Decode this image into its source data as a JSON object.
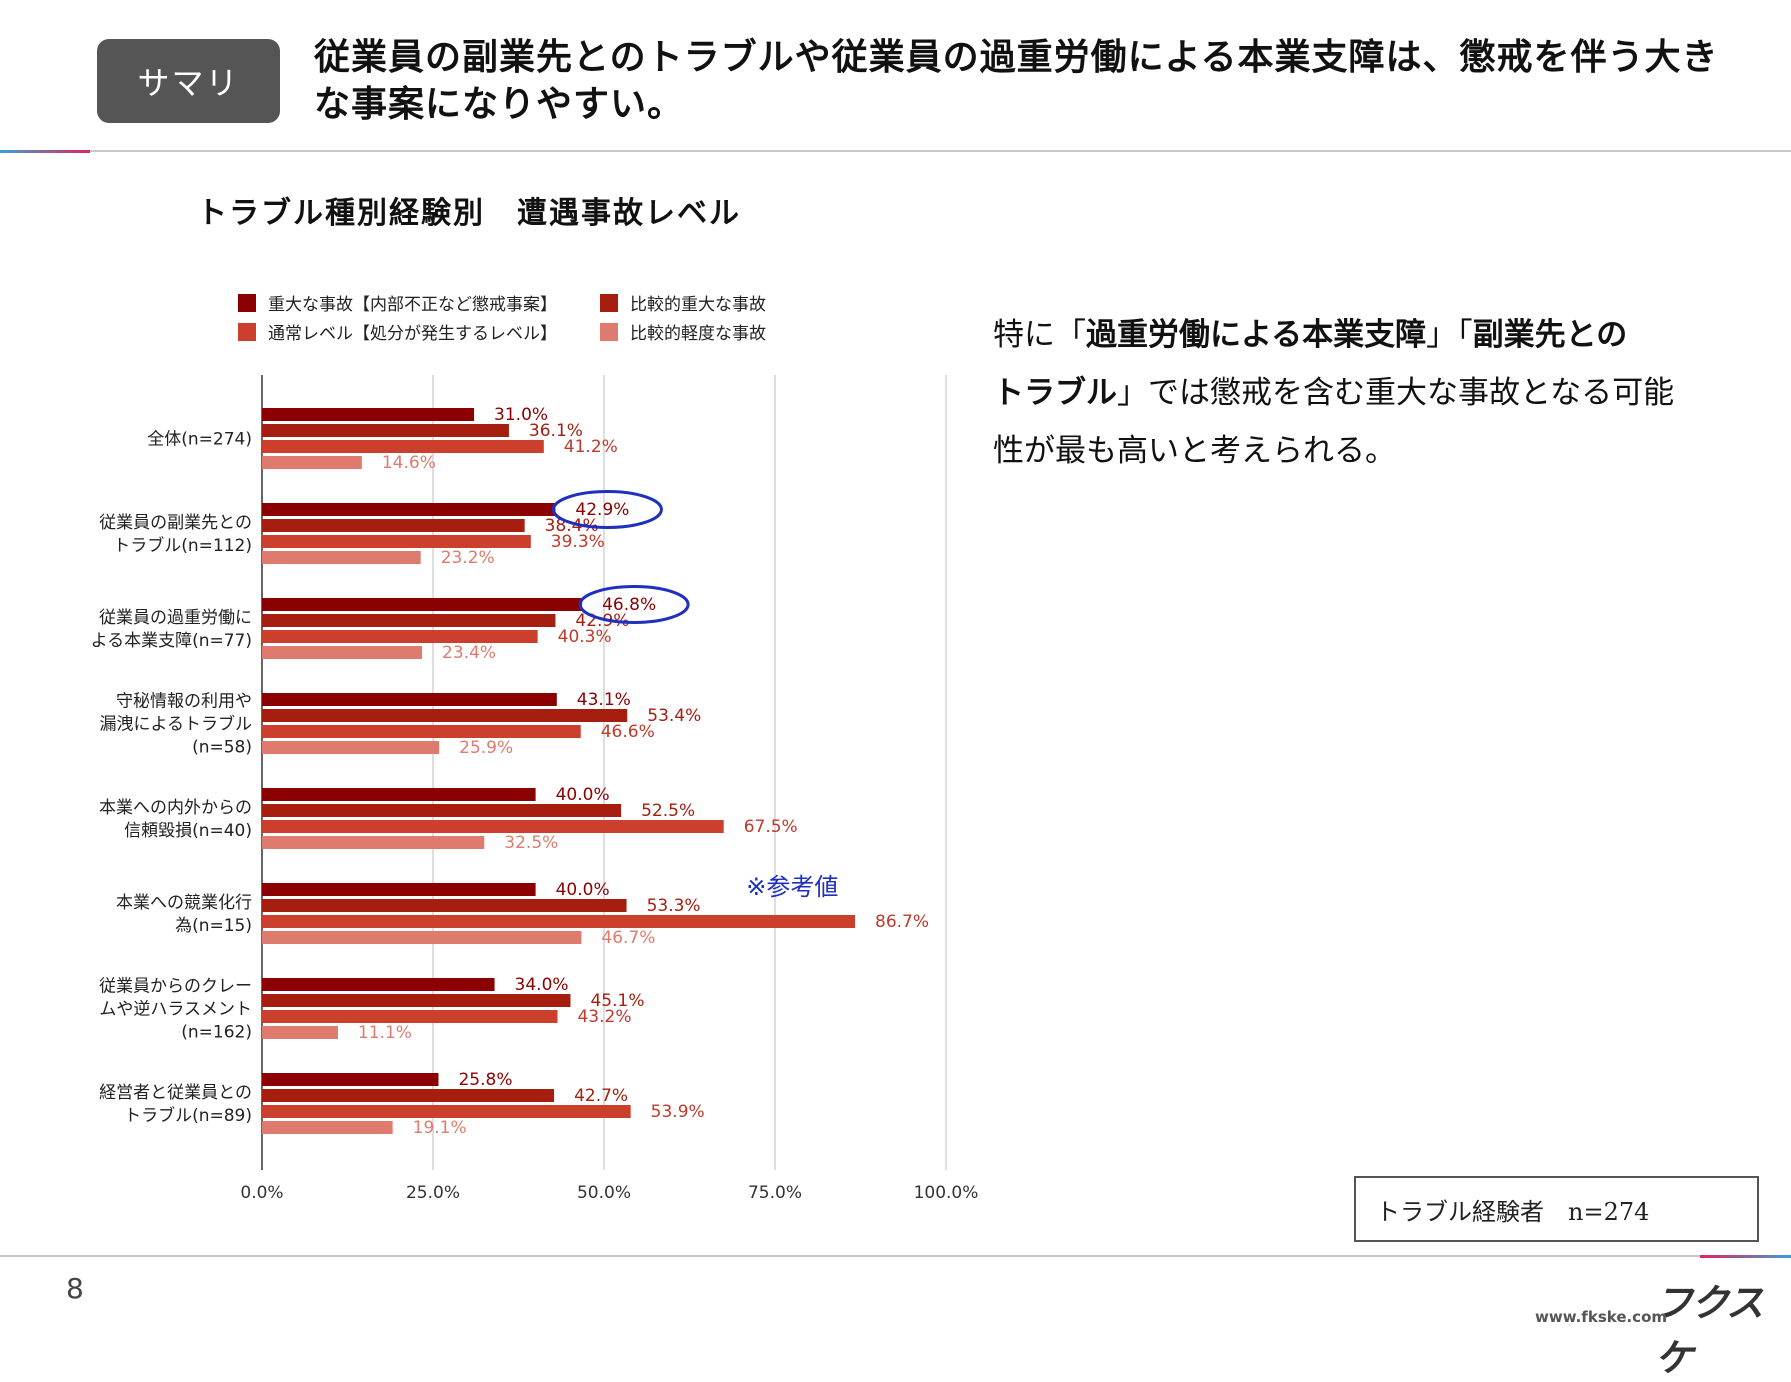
{
  "header": {
    "badge": "サマリ",
    "headline": "従業員の副業先とのトラブルや従業員の過重労働による本業支障は、懲戒を伴う大きな事案になりやすい。"
  },
  "chart_title": "トラブル種別経験別　遭遇事故レベル",
  "commentary": {
    "p1": "特に「",
    "b1": "過重労働による本業支障",
    "p2": "」「",
    "b2": "副業先との",
    "b2b": "トラブル",
    "p3": "」では懲戒を含む重大な事故となる可能性が最も高いと考えられる。"
  },
  "sample_note": "トラブル経験者　n=274",
  "page_number": "8",
  "footer": {
    "logo": "フクスケ",
    "url": "www.fkske.com"
  },
  "chart_data": {
    "type": "bar",
    "orientation": "horizontal",
    "categories": [
      "全体(n=274)",
      "従業員の副業先との\nトラブル(n=112)",
      "従業員の過重労働に\nよる本業支障(n=77)",
      "守秘情報の利用や\n漏洩によるトラブル\n(n=58)",
      "本業への内外からの\n信頼毀損(n=40)",
      "本業への競業化行\n為(n=15)",
      "従業員からのクレー\nムや逆ハラスメント\n(n=162)",
      "経営者と従業員との\nトラブル(n=89)"
    ],
    "series": [
      {
        "name": "重大な事故【内部不正など懲戒事案】",
        "color": "#8b0000",
        "values": [
          31.0,
          42.9,
          46.8,
          43.1,
          40.0,
          40.0,
          34.0,
          25.8
        ]
      },
      {
        "name": "比較的重大な事故",
        "color": "#a51e0f",
        "values": [
          36.1,
          38.4,
          42.9,
          53.4,
          52.5,
          53.3,
          45.1,
          42.7
        ]
      },
      {
        "name": "通常レベル【処分が発生するレベル】",
        "color": "#cc3f2c",
        "values": [
          41.2,
          39.3,
          40.3,
          46.6,
          67.5,
          86.7,
          43.2,
          53.9
        ]
      },
      {
        "name": "比較的軽度な事故",
        "color": "#df7b6e",
        "values": [
          14.6,
          23.2,
          23.4,
          25.9,
          32.5,
          46.7,
          11.1,
          19.1
        ]
      }
    ],
    "xlim": [
      0,
      100
    ],
    "xticks": [
      "0.0%",
      "25.0%",
      "50.0%",
      "75.0%",
      "100.0%"
    ],
    "value_suffix": "%",
    "legend_position": "top",
    "grid": true,
    "highlights": [
      {
        "category_index": 1,
        "series_index": 0
      },
      {
        "category_index": 2,
        "series_index": 0
      }
    ],
    "annotation": {
      "text": "※参考値",
      "category_index": 5
    }
  }
}
